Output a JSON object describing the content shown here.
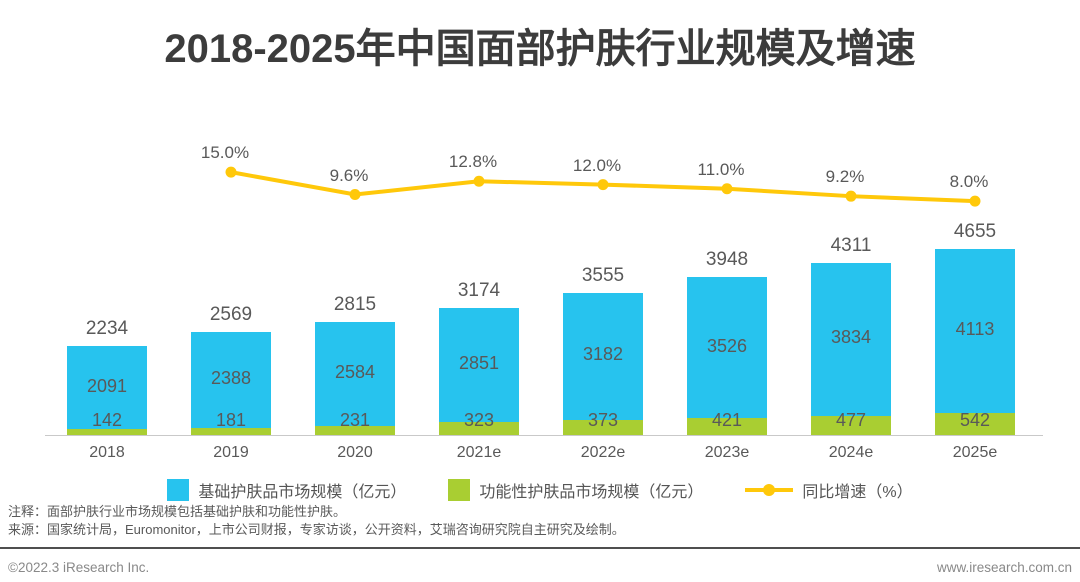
{
  "page": {
    "title": "2018-2025年中国面部护肤行业规模及增速",
    "note": "注释：面部护肤行业市场规模包括基础护肤和功能性护肤。",
    "source": "来源：国家统计局，Euromonitor，上市公司财报，专家访谈，公开资料，艾瑞咨询研究院自主研究及绘制。",
    "footer_left": "©2022.3 iResearch Inc.",
    "footer_right": "www.iresearch.com.cn"
  },
  "colors": {
    "base_bar": "#27c3ee",
    "functional_bar": "#a9ce32",
    "growth_line": "#ffc80a",
    "label_gray": "#595959",
    "title_gray": "#3c3c3c",
    "axis_gray": "#c9c9c9"
  },
  "chart_data": {
    "type": "bar",
    "subtype": "stacked-bars-with-growth-line",
    "title": "2018-2025年中国面部护肤行业规模及增速",
    "categories": [
      "2018",
      "2019",
      "2020",
      "2021e",
      "2022e",
      "2023e",
      "2024e",
      "2025e"
    ],
    "series": [
      {
        "name": "基础护肤品市场规模（亿元）",
        "color": "#27c3ee",
        "values": [
          2091,
          2388,
          2584,
          2851,
          3182,
          3526,
          3834,
          4113
        ]
      },
      {
        "name": "功能性护肤品市场规模（亿元）",
        "color": "#a9ce32",
        "values": [
          142,
          181,
          231,
          323,
          373,
          421,
          477,
          542
        ]
      }
    ],
    "totals": [
      2234,
      2569,
      2815,
      3174,
      3555,
      3948,
      4311,
      4655
    ],
    "line": {
      "name": "同比增速（%）",
      "color": "#ffc80a",
      "categories": [
        "2019",
        "2020",
        "2021e",
        "2022e",
        "2023e",
        "2024e",
        "2025e"
      ],
      "values": [
        15.0,
        9.6,
        12.8,
        12.0,
        11.0,
        9.2,
        8.0
      ],
      "labels": [
        "15.0%",
        "9.6%",
        "12.8%",
        "12.0%",
        "11.0%",
        "9.2%",
        "8.0%"
      ]
    },
    "legend_position": "bottom",
    "grid": false,
    "y_axis_visible": false
  }
}
